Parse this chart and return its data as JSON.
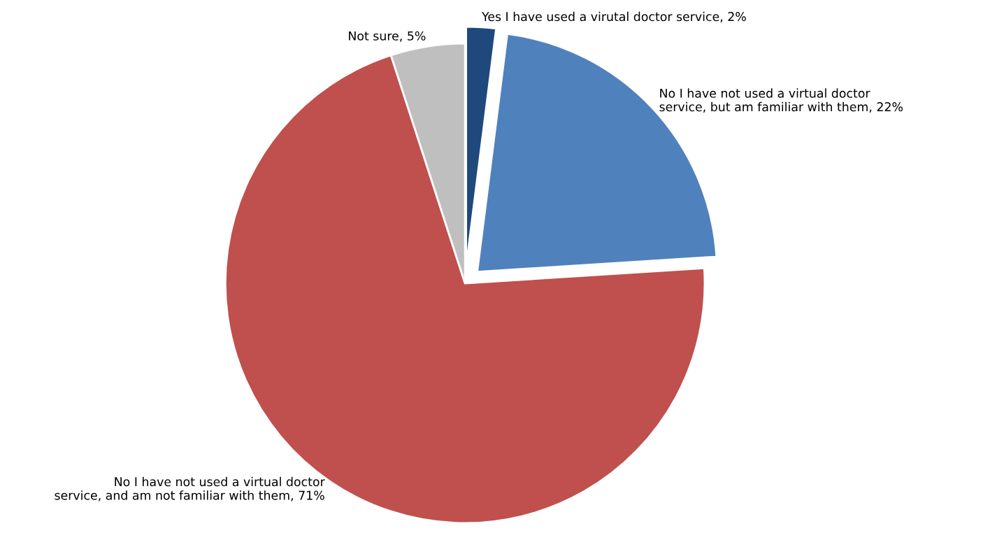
{
  "chart_data": {
    "type": "pie",
    "categories": [
      "Yes I have used a virutal doctor service",
      "No I have not used a virtual doctor service, but am familiar with them",
      "No I have not used a virtual doctor service, and am not familiar with them",
      "Not sure"
    ],
    "values": [
      2,
      22,
      71,
      5
    ],
    "value_labels": [
      "2%",
      "22%",
      "71%",
      "5%"
    ],
    "colors": [
      "#1f497d",
      "#4f81bd",
      "#c0504d",
      "#bfbfbf"
    ]
  }
}
